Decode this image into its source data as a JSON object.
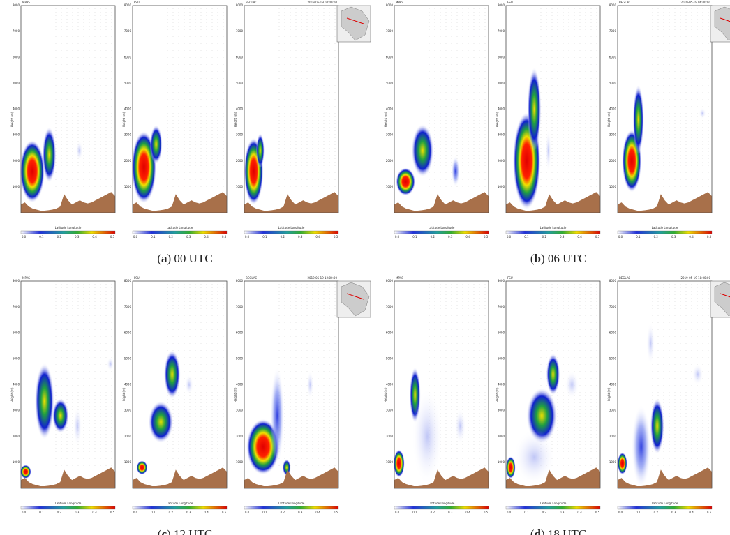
{
  "figure": {
    "panel_titles": [
      "MPAS",
      "FSU",
      "BEGLAC"
    ],
    "y_label": "Height (m)",
    "x_label": "Latitude  Longitude",
    "yticks": [
      1000,
      2000,
      3000,
      4000,
      5000,
      6000,
      7000,
      8000
    ],
    "colorbar_ticks": [
      "0.0",
      "0.1",
      "0.2",
      "0.3",
      "0.4",
      "0.5"
    ],
    "groups": [
      {
        "letter": "a",
        "caption": "00 UTC",
        "timestamp": "2019-05-19 00:00:00"
      },
      {
        "letter": "b",
        "caption": "06 UTC",
        "timestamp": "2019-05-19 06:00:00"
      },
      {
        "letter": "c",
        "caption": "12 UTC",
        "timestamp": "2019-05-19 12:00:00"
      },
      {
        "letter": "d",
        "caption": "18 UTC",
        "timestamp": "2019-05-19 18:00:00"
      }
    ]
  }
}
